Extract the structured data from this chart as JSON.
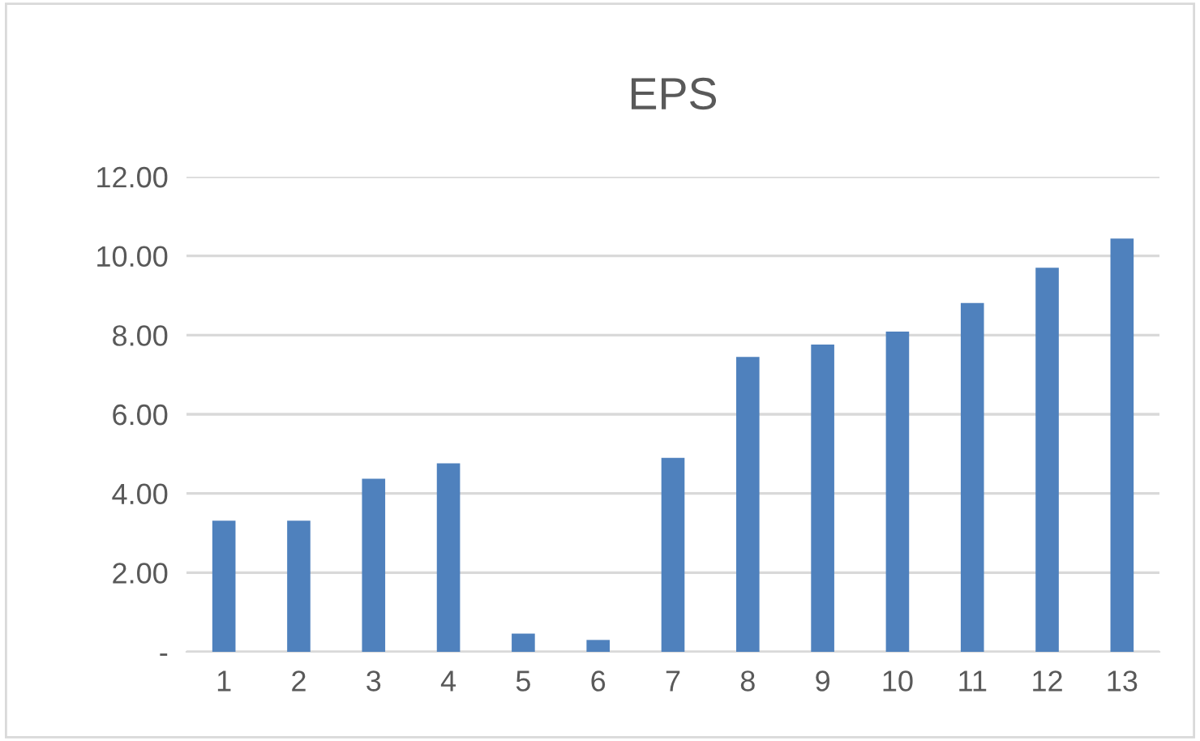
{
  "chart_data": {
    "type": "bar",
    "title": "EPS",
    "categories": [
      "1",
      "2",
      "3",
      "4",
      "5",
      "6",
      "7",
      "8",
      "9",
      "10",
      "11",
      "12",
      "13"
    ],
    "values": [
      3.31,
      3.31,
      4.37,
      4.76,
      0.46,
      0.3,
      4.9,
      7.45,
      7.76,
      8.09,
      8.81,
      9.7,
      10.44
    ],
    "color": "#4f81bd",
    "ylim": [
      0,
      12
    ],
    "yticks": [
      {
        "value": 0,
        "label": "-"
      },
      {
        "value": 2,
        "label": "2.00"
      },
      {
        "value": 4,
        "label": "4.00"
      },
      {
        "value": 6,
        "label": "6.00"
      },
      {
        "value": 8,
        "label": "8.00"
      },
      {
        "value": 10,
        "label": "10.00"
      },
      {
        "value": 12,
        "label": "12.00"
      }
    ],
    "grid": "y",
    "legend": false
  }
}
